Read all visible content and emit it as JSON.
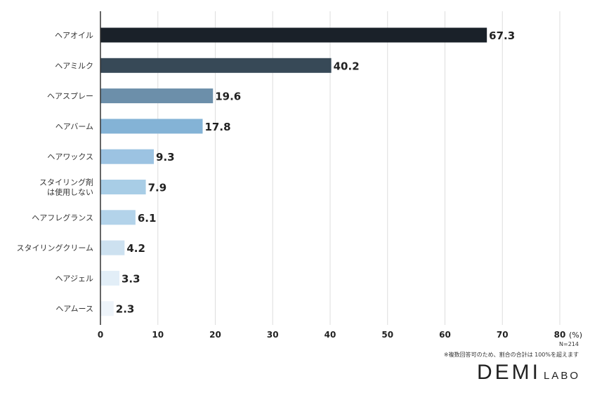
{
  "chart_data": {
    "type": "bar",
    "orientation": "horizontal",
    "categories": [
      [
        "ヘアオイル"
      ],
      [
        "ヘアミルク"
      ],
      [
        "ヘアスプレー"
      ],
      [
        "ヘアバーム"
      ],
      [
        "ヘアワックス"
      ],
      [
        "スタイリング剤",
        "は使用しない"
      ],
      [
        "ヘアフレグランス"
      ],
      [
        "スタイリングクリーム"
      ],
      [
        "ヘアジェル"
      ],
      [
        "ヘアムース"
      ]
    ],
    "values": [
      67.3,
      40.2,
      19.6,
      17.8,
      9.3,
      7.9,
      6.1,
      4.2,
      3.3,
      2.3
    ],
    "value_labels": [
      "67.3",
      "40.2",
      "19.6",
      "17.8",
      "9.3",
      "7.9",
      "6.1",
      "4.2",
      "3.3",
      "2.3"
    ],
    "colors": [
      "#1a2129",
      "#374957",
      "#6c8faa",
      "#84b3d6",
      "#9cc3e2",
      "#a8cde6",
      "#b3d3ea",
      "#cde1f0",
      "#e2eef7",
      "#eef4fa"
    ],
    "xlim": [
      0,
      80
    ],
    "xticks": [
      "0",
      "10",
      "20",
      "30",
      "40",
      "50",
      "60",
      "70",
      "80"
    ],
    "x_unit": "(%)",
    "grid": true,
    "grid_color": "#dddddd"
  },
  "footnote": {
    "sample": "N=214",
    "note": "※複数回答可のため、割合の合計は 100%を超えます"
  },
  "logo": {
    "main": "DEMI",
    "sub": "LABO"
  }
}
